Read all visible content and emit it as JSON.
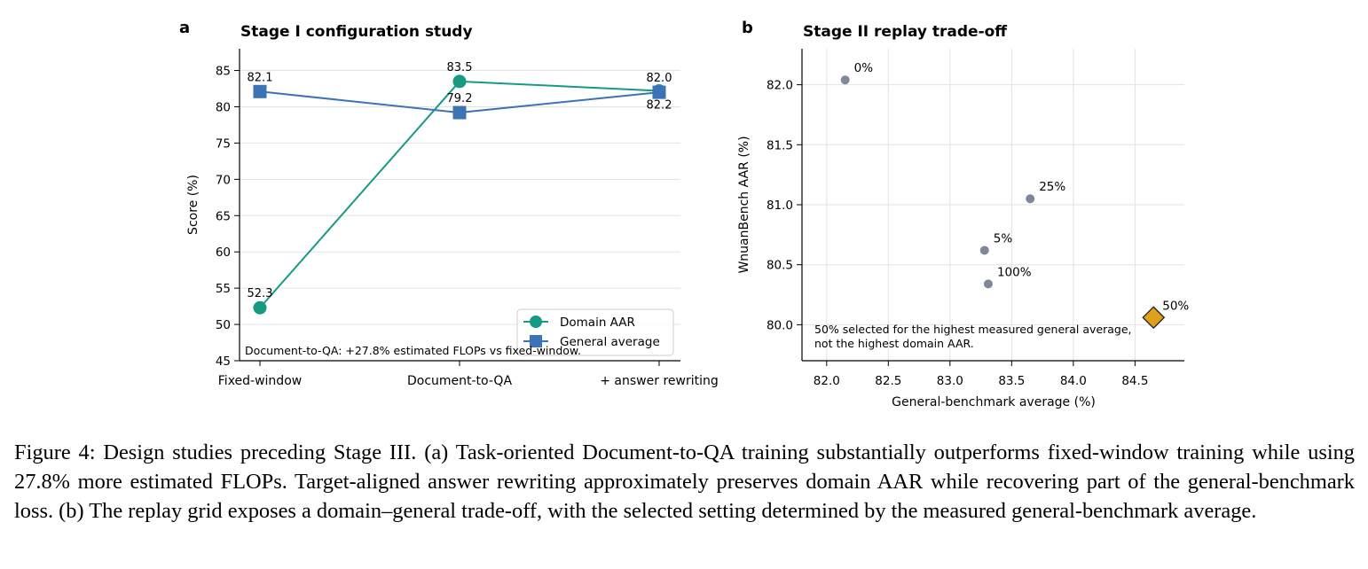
{
  "panel_a_letter": "a",
  "panel_b_letter": "b",
  "chart_data": [
    {
      "type": "line",
      "title": "Stage I configuration study",
      "xlabel": "",
      "ylabel": "Score (%)",
      "categories": [
        "Fixed-window",
        "Document-to-QA",
        "+ answer rewriting"
      ],
      "ylim": [
        45,
        88
      ],
      "yticks": [
        45,
        50,
        55,
        60,
        65,
        70,
        75,
        80,
        85
      ],
      "grid": "horizontal",
      "legend": "lower-right",
      "series": [
        {
          "name": "Domain AAR",
          "values": [
            52.3,
            83.5,
            82.2
          ],
          "color": "#169a83",
          "marker": "circle",
          "labels": [
            "52.3",
            "83.5",
            "82.2"
          ]
        },
        {
          "name": "General average",
          "values": [
            82.1,
            79.2,
            82.0
          ],
          "color": "#3b73b6",
          "marker": "square",
          "labels": [
            "82.1",
            "79.2",
            "82.0"
          ]
        }
      ],
      "annotation": "Document-to-QA: +27.8% estimated FLOPs vs fixed-window."
    },
    {
      "type": "scatter",
      "title": "Stage II replay trade-off",
      "xlabel": "General-benchmark average (%)",
      "ylabel": "WnuanBench AAR (%)",
      "xlim": [
        81.8,
        84.9
      ],
      "ylim": [
        79.7,
        82.3
      ],
      "xticks": [
        "82.0",
        "82.5",
        "83.0",
        "83.5",
        "84.0",
        "84.5"
      ],
      "yticks": [
        "80.0",
        "80.5",
        "81.0",
        "81.5",
        "82.0"
      ],
      "grid": "both",
      "points": [
        {
          "label": "0%",
          "x": 82.15,
          "y": 82.04,
          "selected": false
        },
        {
          "label": "5%",
          "x": 83.28,
          "y": 80.62,
          "selected": false
        },
        {
          "label": "25%",
          "x": 83.65,
          "y": 81.05,
          "selected": false
        },
        {
          "label": "100%",
          "x": 83.31,
          "y": 80.34,
          "selected": false
        },
        {
          "label": "50%",
          "x": 84.65,
          "y": 80.06,
          "selected": true
        }
      ],
      "colors": {
        "point": "#7f8898",
        "selected": "#e0a01a"
      },
      "annotation_lines": [
        "50% selected for the highest measured general average,",
        "not the highest domain AAR."
      ]
    }
  ],
  "caption": "Figure 4: Design studies preceding Stage III. (a) Task-oriented Document-to-QA training substantially outperforms fixed-window training while using 27.8% more estimated FLOPs. Target-aligned answer rewriting approximately preserves domain AAR while recovering part of the general-benchmark loss. (b) The replay grid exposes a domain–general trade-off, with the selected setting determined by the measured general-benchmark average."
}
